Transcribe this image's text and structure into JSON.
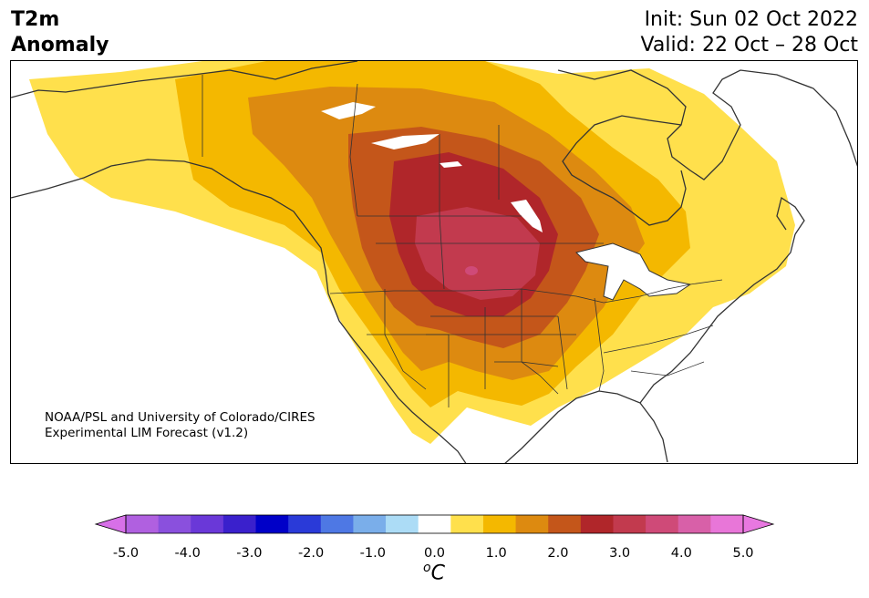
{
  "title": {
    "line1": "T2m",
    "line2": "Anomaly",
    "init": "Init: Sun 02 Oct 2022",
    "valid": "Valid: 22 Oct – 28 Oct"
  },
  "credit": {
    "line1": "NOAA/PSL and University of Colorado/CIRES",
    "line2": "Experimental LIM Forecast (v1.2)"
  },
  "map": {
    "region": "North America",
    "variable": "2 m temperature anomaly",
    "max_anomaly_region": "Northern Plains (Dakotas/Nebraska)",
    "max_anomaly_level": 3.5
  },
  "colorbar": {
    "unit_base": "C",
    "unit_sup": "o",
    "tick_labels": [
      "-5.0",
      "-4.0",
      "-3.0",
      "-2.0",
      "-1.0",
      "0.0",
      "1.0",
      "2.0",
      "3.0",
      "4.0",
      "5.0"
    ],
    "colors": {
      "lt_neg5": "#d770e8",
      "neg": [
        "#b060e0",
        "#8a50dd",
        "#6a38d8",
        "#3a20cc",
        "#0000c8",
        "#2a3ad8",
        "#4e78e4",
        "#7aaeea",
        "#acdcf6"
      ],
      "zero": "#ffffff",
      "pos": [
        "#ffe04c",
        "#f4b800",
        "#dd8a10",
        "#c4561a",
        "#b0262a",
        "#c23a4e",
        "#cf4a78",
        "#d860a8",
        "#e876d8"
      ],
      "gt_pos5": "#e878e0"
    }
  }
}
